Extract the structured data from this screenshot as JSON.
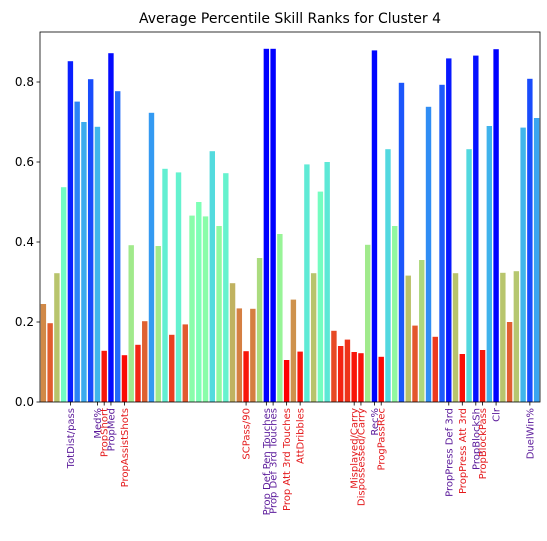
{
  "chart_data": {
    "type": "bar",
    "title": "Average Percentile Skill Ranks for Cluster 4",
    "xlabel": "",
    "ylabel": "",
    "ylim": [
      0,
      0.925
    ],
    "yticks": [
      0.0,
      0.2,
      0.4,
      0.6,
      0.8
    ],
    "ytick_labels": [
      "0.0",
      "0.2",
      "0.4",
      "0.6",
      "0.8"
    ],
    "grid": false,
    "legend": "none",
    "colors": {
      "purple_label": "#5b1a9a",
      "red_label": "#e41a1c",
      "rainbow_low": "#8000ff",
      "rainbow_high": "#ff0000"
    },
    "values": [
      0.245,
      0.197,
      0.322,
      0.537,
      0.852,
      0.751,
      0.7,
      0.807,
      0.688,
      0.128,
      0.872,
      0.777,
      0.117,
      0.392,
      0.143,
      0.202,
      0.723,
      0.39,
      0.583,
      0.168,
      0.574,
      0.194,
      0.466,
      0.5,
      0.464,
      0.627,
      0.44,
      0.572,
      0.297,
      0.234,
      0.127,
      0.233,
      0.36,
      0.883,
      0.883,
      0.42,
      0.105,
      0.256,
      0.126,
      0.594,
      0.322,
      0.526,
      0.6,
      0.178,
      0.14,
      0.156,
      0.125,
      0.122,
      0.393,
      0.879,
      0.113,
      0.632,
      0.44,
      0.798,
      0.316,
      0.191,
      0.355,
      0.738,
      0.163,
      0.793,
      0.859,
      0.322,
      0.12,
      0.632,
      0.866,
      0.13,
      0.69,
      0.882,
      0.323,
      0.2,
      0.327,
      0.686,
      0.808,
      0.71
    ],
    "tick_labels": [
      {
        "index": 4,
        "label": "TotDist/pass",
        "color": "purple"
      },
      {
        "index": 8,
        "label": "Med%",
        "color": "purple"
      },
      {
        "index": 9,
        "label": "PropShort",
        "color": "red"
      },
      {
        "index": 10,
        "label": "PropMed",
        "color": "purple"
      },
      {
        "index": 12,
        "label": "PropAssistShots",
        "color": "red"
      },
      {
        "index": 30,
        "label": "SCPass/90",
        "color": "red"
      },
      {
        "index": 33,
        "label": "Prop Def Pen Touches",
        "color": "purple"
      },
      {
        "index": 34,
        "label": "Prop Def 3rd Touches",
        "color": "purple"
      },
      {
        "index": 36,
        "label": "Prop Att 3rd Touches",
        "color": "red"
      },
      {
        "index": 38,
        "label": "AttDribbles",
        "color": "red"
      },
      {
        "index": 46,
        "label": "Misplayed/Carry",
        "color": "red"
      },
      {
        "index": 47,
        "label": "Dispossessed/Carry",
        "color": "red"
      },
      {
        "index": 49,
        "label": "Rec%",
        "color": "purple"
      },
      {
        "index": 50,
        "label": "ProgPassRec",
        "color": "red"
      },
      {
        "index": 60,
        "label": "PropPress Def 3rd",
        "color": "purple"
      },
      {
        "index": 62,
        "label": "PropPress Att 3rd",
        "color": "red"
      },
      {
        "index": 64,
        "label": "PropBlockSh",
        "color": "purple"
      },
      {
        "index": 65,
        "label": "PropBlockPass",
        "color": "red"
      },
      {
        "index": 67,
        "label": "Clr",
        "color": "purple"
      },
      {
        "index": 72,
        "label": "DuelWin%",
        "color": "purple"
      }
    ]
  }
}
